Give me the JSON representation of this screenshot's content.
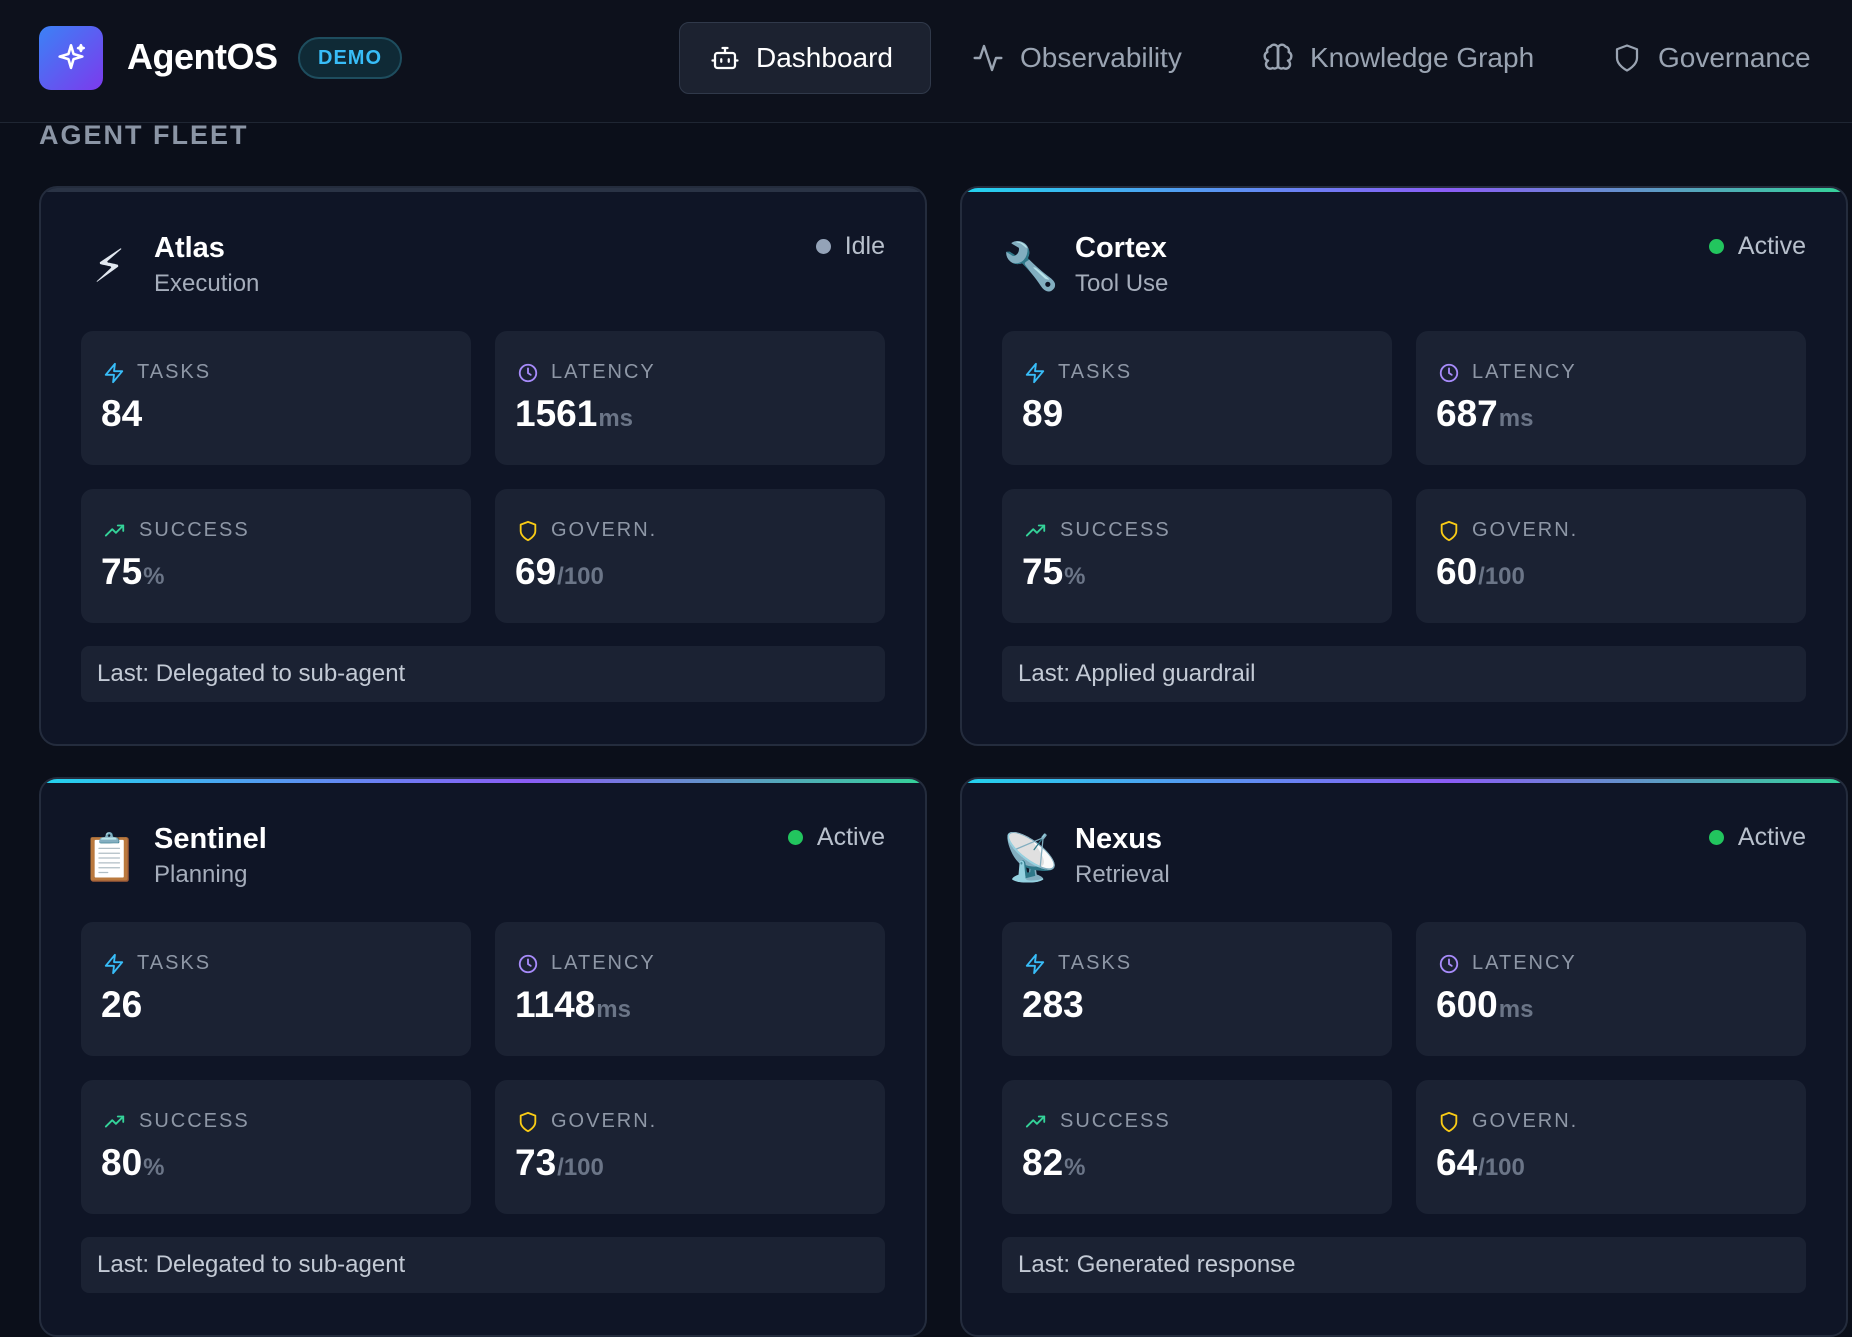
{
  "app": {
    "brand": "AgentOS",
    "badge": "DEMO"
  },
  "nav": {
    "items": [
      {
        "label": "Dashboard",
        "icon": "robot-icon",
        "active": true
      },
      {
        "label": "Observability",
        "icon": "activity-icon",
        "active": false
      },
      {
        "label": "Knowledge Graph",
        "icon": "brain-icon",
        "active": false
      },
      {
        "label": "Governance",
        "icon": "shield-icon",
        "active": false
      }
    ]
  },
  "section": {
    "title": "AGENT FLEET"
  },
  "labels": {
    "tasks": "TASKS",
    "latency": "LATENCY",
    "success": "SUCCESS",
    "govern": "GOVERN.",
    "latency_unit": "ms",
    "success_unit": "%",
    "govern_unit": "/100"
  },
  "colors": {
    "active": "#22c55e",
    "idle": "#94a3b8",
    "tasks_icon": "#38bdf8",
    "latency_icon": "#a78bfa",
    "success_icon": "#34d399",
    "govern_icon": "#facc15"
  },
  "agents": [
    {
      "name": "Atlas",
      "role": "Execution",
      "icon": "lightning-icon",
      "emoji": "⚡",
      "status": "Idle",
      "state": "idle",
      "tasks": "84",
      "latency": "1561",
      "success": "75",
      "govern": "69",
      "last": "Last: Delegated to sub-agent"
    },
    {
      "name": "Cortex",
      "role": "Tool Use",
      "icon": "wrench-icon",
      "emoji": "🔧",
      "status": "Active",
      "state": "active",
      "tasks": "89",
      "latency": "687",
      "success": "75",
      "govern": "60",
      "last": "Last: Applied guardrail"
    },
    {
      "name": "Sentinel",
      "role": "Planning",
      "icon": "clipboard-icon",
      "emoji": "📋",
      "status": "Active",
      "state": "active",
      "tasks": "26",
      "latency": "1148",
      "success": "80",
      "govern": "73",
      "last": "Last: Delegated to sub-agent"
    },
    {
      "name": "Nexus",
      "role": "Retrieval",
      "icon": "satellite-dish-icon",
      "emoji": "📡",
      "status": "Active",
      "state": "active",
      "tasks": "283",
      "latency": "600",
      "success": "82",
      "govern": "64",
      "last": "Last: Generated response"
    }
  ]
}
